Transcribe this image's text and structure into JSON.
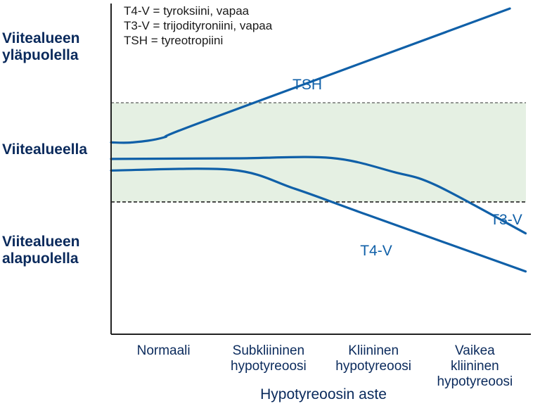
{
  "legend": [
    "T4-V = tyroksiini, vapaa",
    "T3-V = trijodityroniini, vapaa",
    "TSH = tyreotropiini"
  ],
  "chart_data": {
    "type": "line",
    "xlabel": "Hypotyreoosin aste",
    "categories": [
      "Normaali",
      "Subkliininen hypotyreoosi",
      "Kliininen hypotyreoosi",
      "Vaikea kliininen hypotyreoosi"
    ],
    "category_lines": [
      [
        "Normaali"
      ],
      [
        "Subkliininen",
        "hypotyreoosi"
      ],
      [
        "Kliininen",
        "hypotyreoosi"
      ],
      [
        "Vaikea",
        "kliininen",
        "hypotyreoosi"
      ]
    ],
    "x_range": [
      0,
      4
    ],
    "y_range": [
      0,
      10
    ],
    "reference_range": [
      4.0,
      7.0
    ],
    "y_bands": [
      {
        "lines": [
          "Viitealueen",
          "yläpuolella"
        ],
        "y": 8.7
      },
      {
        "lines": [
          "Viitealueella"
        ],
        "y": 5.6
      },
      {
        "lines": [
          "Viitealueen",
          "alapuolella"
        ],
        "y": 2.55
      }
    ],
    "series": [
      {
        "name": "TSH",
        "points": [
          [
            0,
            5.8
          ],
          [
            0.2,
            5.8
          ],
          [
            0.5,
            5.95
          ],
          [
            0.85,
            6.4
          ],
          [
            3.8,
            9.85
          ]
        ]
      },
      {
        "name": "T3-V",
        "points": [
          [
            0,
            5.3
          ],
          [
            1.2,
            5.32
          ],
          [
            2.1,
            5.33
          ],
          [
            2.7,
            4.9
          ],
          [
            3.1,
            4.5
          ],
          [
            3.95,
            3.05
          ]
        ]
      },
      {
        "name": "T4-V",
        "points": [
          [
            0,
            4.95
          ],
          [
            1.15,
            4.97
          ],
          [
            1.75,
            4.4
          ],
          [
            2.45,
            3.6
          ],
          [
            3.95,
            1.9
          ]
        ]
      }
    ],
    "colors": {
      "line": "#1060a8",
      "band": "#e5f0e3",
      "text": "#0a2a5c"
    }
  }
}
